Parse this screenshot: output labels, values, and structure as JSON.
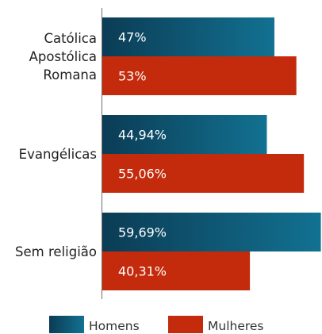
{
  "chart_data": {
    "type": "bar",
    "orientation": "horizontal",
    "categories": [
      [
        "Católica",
        "Apostólica",
        "Romana"
      ],
      [
        "Evangélicas"
      ],
      [
        "Sem religião"
      ]
    ],
    "series": [
      {
        "name": "Homens",
        "values": [
          47,
          44.94,
          59.69
        ],
        "labels": [
          "47%",
          "44,94%",
          "59,69%"
        ],
        "color": "#0b3c55",
        "color_light": "#127191"
      },
      {
        "name": "Mulheres",
        "values": [
          53,
          55.06,
          40.31
        ],
        "labels": [
          "53%",
          "55,06%",
          "40,31%"
        ],
        "color": "#c42b0c"
      }
    ],
    "xlim": [
      0,
      60
    ],
    "grid": false,
    "legend_position": "bottom"
  }
}
